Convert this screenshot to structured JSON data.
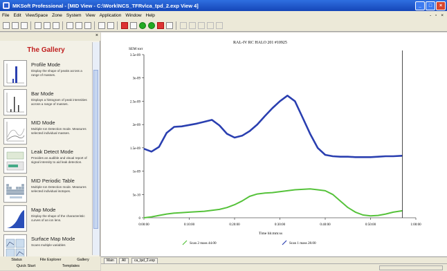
{
  "window": {
    "title": "MKSoft Professional - [MID View - C:\\Work\\NCS_TFRv\\ca_tpd_2.exp View 4]",
    "buttons": [
      "_",
      "□",
      "×"
    ]
  },
  "menu": [
    "File",
    "Edit",
    "ViewSpace",
    "Zone",
    "System",
    "View",
    "Application",
    "Window",
    "Help"
  ],
  "menu_right_controls": "- ▫ ×",
  "gallery": {
    "title": "The Gallery",
    "close_glyph": "×",
    "items": [
      {
        "name": "Profile Mode",
        "description": "Display the shape of peaks across a range of masses."
      },
      {
        "name": "Bar Mode",
        "description": "Displays a histogram of peak intensities across a range of masses."
      },
      {
        "name": "MID Mode",
        "description": "Multiple Ion Detection mode. Measures selected individual masses."
      },
      {
        "name": "Leak Detect Mode",
        "description": "Provides an audible and visual report of signal intensity to aid leak detection."
      },
      {
        "name": "MID Periodic Table",
        "description": "Multiple Ion Detection mode. Measures selected individual isotopes."
      },
      {
        "name": "Map Mode",
        "description": "Display the shape of the characteristic curves of an ion lens."
      },
      {
        "name": "Surface Map Mode",
        "description": "Scans multiple variables"
      }
    ],
    "tabs": [
      "Status",
      "File Explorer",
      "Gallery",
      "Quick Start",
      "Templates"
    ]
  },
  "chart_data": {
    "type": "line",
    "title": "RAL-IV RC HALO 201 #10925",
    "ylabel": "SEM  torr",
    "xlabel": "Time  hh:mm:ss",
    "ylim": [
      0,
      3.5e-09
    ],
    "xlim_seconds": [
      0,
      3600
    ],
    "y_ticks": [
      {
        "value": 0,
        "label": "0"
      },
      {
        "value": 5e-10,
        "label": "5e-10"
      },
      {
        "value": 1e-09,
        "label": "1e-09"
      },
      {
        "value": 1.5e-09,
        "label": "1.5e-09"
      },
      {
        "value": 2e-09,
        "label": "2e-09"
      },
      {
        "value": 2.5e-09,
        "label": "2.5e-09"
      },
      {
        "value": 3e-09,
        "label": "3e-09"
      },
      {
        "value": 3.5e-09,
        "label": "3.5e-09"
      }
    ],
    "x_ticks": [
      {
        "value": 0,
        "label": "0:00:00"
      },
      {
        "value": 600,
        "label": "0:10:00"
      },
      {
        "value": 1200,
        "label": "0:20:00"
      },
      {
        "value": 1800,
        "label": "0:30:00"
      },
      {
        "value": 2400,
        "label": "0:40:00"
      },
      {
        "value": 3000,
        "label": "0:50:00"
      },
      {
        "value": 3600,
        "label": "1:00:00"
      }
    ],
    "cursor_x": 3420,
    "series": [
      {
        "name": "Scan 1  mass 28.00",
        "color": "#2a3fb0",
        "x": [
          0,
          100,
          200,
          300,
          400,
          500,
          600,
          700,
          800,
          900,
          1000,
          1100,
          1200,
          1300,
          1400,
          1500,
          1600,
          1700,
          1800,
          1900,
          2000,
          2100,
          2200,
          2300,
          2400,
          2500,
          2600,
          2700,
          2800,
          2900,
          3000,
          3100,
          3200,
          3300,
          3420
        ],
        "y": [
          1.48e-09,
          1.42e-09,
          1.52e-09,
          1.82e-09,
          1.95e-09,
          1.96e-09,
          1.99e-09,
          2.02e-09,
          2.06e-09,
          2.1e-09,
          1.98e-09,
          1.8e-09,
          1.72e-09,
          1.76e-09,
          1.86e-09,
          2e-09,
          2.18e-09,
          2.35e-09,
          2.5e-09,
          2.62e-09,
          2.5e-09,
          2.15e-09,
          1.8e-09,
          1.5e-09,
          1.35e-09,
          1.32e-09,
          1.31e-09,
          1.31e-09,
          1.3e-09,
          1.3e-09,
          1.3e-09,
          1.31e-09,
          1.32e-09,
          1.32e-09,
          1.33e-09
        ]
      },
      {
        "name": "Scan 2  mass 44.00",
        "color": "#55c23a",
        "x": [
          0,
          100,
          200,
          300,
          400,
          500,
          600,
          700,
          800,
          900,
          1000,
          1100,
          1200,
          1300,
          1400,
          1500,
          1600,
          1700,
          1800,
          1900,
          2000,
          2100,
          2200,
          2300,
          2400,
          2500,
          2600,
          2700,
          2800,
          2900,
          3000,
          3100,
          3200,
          3300,
          3420
        ],
        "y": [
          0,
          2e-11,
          5e-11,
          8e-11,
          1e-10,
          1.1e-10,
          1.2e-10,
          1.3e-10,
          1.4e-10,
          1.6e-10,
          1.8e-10,
          2.2e-10,
          2.8e-10,
          3.6e-10,
          4.6e-10,
          5.1e-10,
          5.3e-10,
          5.4e-10,
          5.6e-10,
          5.8e-10,
          6e-10,
          6.1e-10,
          6.2e-10,
          6e-10,
          5.8e-10,
          5e-10,
          3.6e-10,
          2.2e-10,
          1.2e-10,
          6e-11,
          4e-11,
          5e-11,
          8e-11,
          1.2e-10,
          1.5e-10
        ]
      }
    ],
    "legend": [
      {
        "label": "Scan 2  mass 44.00",
        "color": "#55c23a"
      },
      {
        "label": "Scan 1  mass 28.00",
        "color": "#2a3fb0"
      }
    ],
    "grid": false,
    "legend_position": "bottom"
  },
  "view_tabs": [
    "Main",
    "All",
    "ca_tpd_2.exp"
  ]
}
